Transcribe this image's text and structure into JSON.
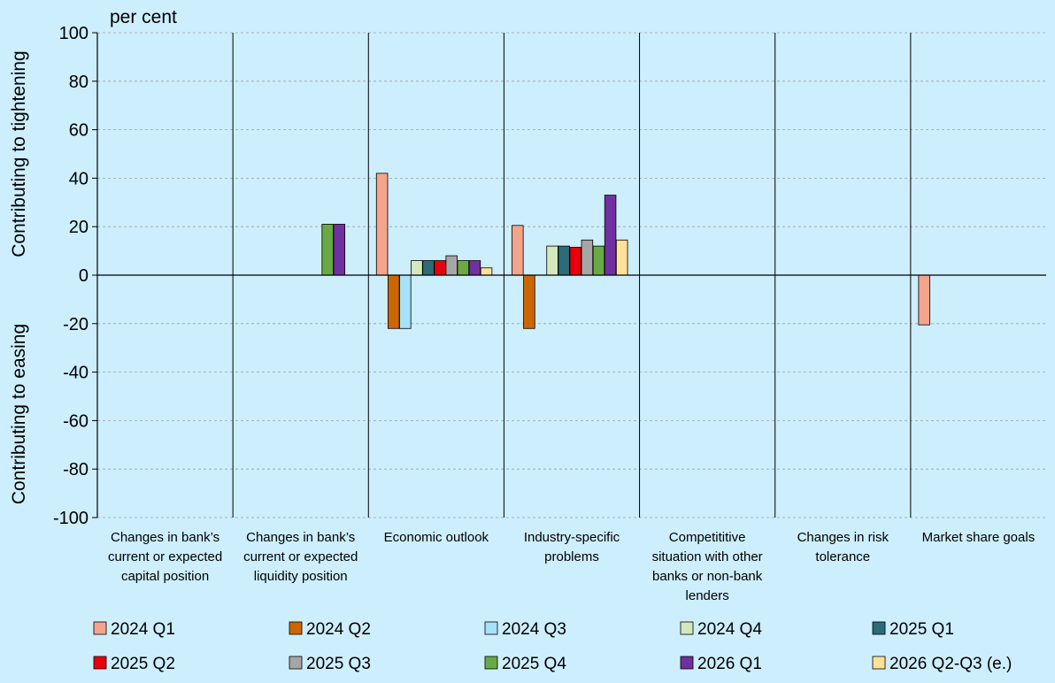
{
  "chart_data": {
    "type": "bar",
    "unit_label": "per cent",
    "ylabel_top": "Contributing to tightening",
    "ylabel_bottom": "Contributing to easing",
    "ylim": [
      -100,
      100
    ],
    "yticks": [
      100,
      80,
      60,
      40,
      20,
      0,
      -20,
      -40,
      -60,
      -80,
      -100
    ],
    "grid": true,
    "legend_position": "bottom",
    "categories": [
      [
        "Changes in bank’s",
        "current or expected",
        "capital position"
      ],
      [
        "Changes in bank’s",
        "current or expected",
        "liquidity position"
      ],
      [
        "Economic outlook"
      ],
      [
        "Industry-specific",
        "problems"
      ],
      [
        "Competititive",
        "situation with other",
        "banks or non-bank",
        "lenders"
      ],
      [
        "Changes in risk",
        "tolerance"
      ],
      [
        "Market share goals"
      ]
    ],
    "series": [
      {
        "name": "2024 Q1",
        "color": "#f4a48c",
        "values": [
          0,
          0,
          42,
          20.5,
          0,
          0,
          -20.5
        ]
      },
      {
        "name": "2024 Q2",
        "color": "#cc6600",
        "values": [
          0,
          0,
          -22,
          -22,
          0,
          0,
          0
        ]
      },
      {
        "name": "2024 Q3",
        "color": "#a6e2f9",
        "values": [
          0,
          0,
          -22,
          0,
          0,
          0,
          0
        ]
      },
      {
        "name": "2024 Q4",
        "color": "#d3e8bc",
        "values": [
          0,
          0,
          6,
          12,
          0,
          0,
          0
        ]
      },
      {
        "name": "2025 Q1",
        "color": "#2c6b7a",
        "values": [
          0,
          0,
          6,
          12,
          0,
          0,
          0
        ]
      },
      {
        "name": "2025 Q2",
        "color": "#e8000b",
        "values": [
          0,
          0,
          6,
          11.5,
          0,
          0,
          0
        ]
      },
      {
        "name": "2025 Q3",
        "color": "#a6a6a6",
        "values": [
          0,
          0,
          8,
          14.5,
          0,
          0,
          0
        ]
      },
      {
        "name": "2025 Q4",
        "color": "#6aaa44",
        "values": [
          0,
          21,
          6,
          12,
          0,
          0,
          0
        ]
      },
      {
        "name": "2026 Q1",
        "color": "#7030a0",
        "values": [
          0,
          21,
          6,
          33,
          0,
          0,
          0
        ]
      },
      {
        "name": "2026 Q2-Q3 (e.)",
        "color": "#ffe199",
        "values": [
          0,
          0,
          3,
          14.5,
          0,
          0,
          0
        ]
      }
    ]
  }
}
